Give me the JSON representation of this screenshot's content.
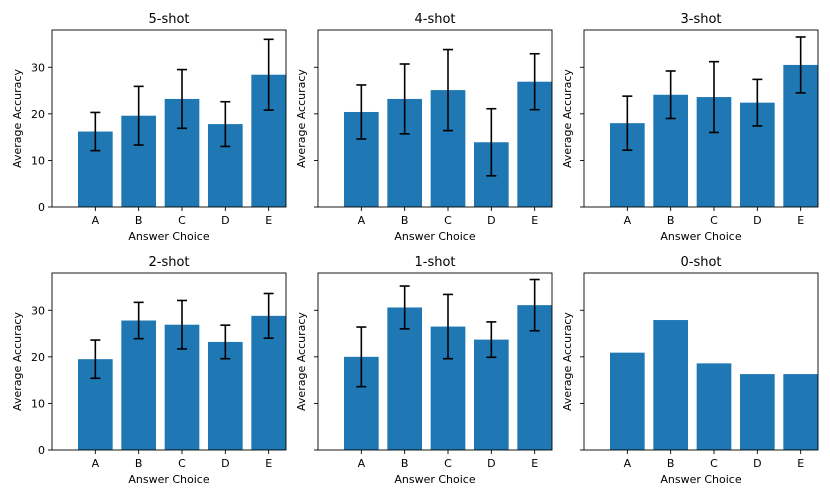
{
  "bar_color": "#1f77b4",
  "error_color": "#000000",
  "chart_data": [
    {
      "type": "bar",
      "title": "5-shot",
      "xlabel": "Answer Choice",
      "ylabel": "Average Accuracy",
      "ylim": [
        0,
        38
      ],
      "yticks": [
        0,
        10,
        20,
        30
      ],
      "ytick_labels_shown": true,
      "categories": [
        "A",
        "B",
        "C",
        "D",
        "E"
      ],
      "values": [
        16.2,
        19.6,
        23.2,
        17.8,
        28.4
      ],
      "errors": [
        4.1,
        6.3,
        6.3,
        4.8,
        7.6
      ]
    },
    {
      "type": "bar",
      "title": "4-shot",
      "xlabel": "Answer Choice",
      "ylabel": "Average Accuracy",
      "ylim": [
        0,
        38
      ],
      "yticks": [
        0,
        10,
        20,
        30
      ],
      "ytick_labels_shown": false,
      "categories": [
        "A",
        "B",
        "C",
        "D",
        "E"
      ],
      "values": [
        20.4,
        23.2,
        25.1,
        13.9,
        26.9
      ],
      "errors": [
        5.8,
        7.5,
        8.7,
        7.2,
        6.0
      ]
    },
    {
      "type": "bar",
      "title": "3-shot",
      "xlabel": "Answer Choice",
      "ylabel": "Average Accuracy",
      "ylim": [
        0,
        38
      ],
      "yticks": [
        0,
        10,
        20,
        30
      ],
      "ytick_labels_shown": false,
      "categories": [
        "A",
        "B",
        "C",
        "D",
        "E"
      ],
      "values": [
        18.0,
        24.1,
        23.6,
        22.4,
        30.5
      ],
      "errors": [
        5.8,
        5.1,
        7.6,
        5.0,
        6.0
      ]
    },
    {
      "type": "bar",
      "title": "2-shot",
      "xlabel": "Answer Choice",
      "ylabel": "Average Accuracy",
      "ylim": [
        0,
        38
      ],
      "yticks": [
        0,
        10,
        20,
        30
      ],
      "ytick_labels_shown": true,
      "categories": [
        "A",
        "B",
        "C",
        "D",
        "E"
      ],
      "values": [
        19.5,
        27.8,
        26.9,
        23.2,
        28.8
      ],
      "errors": [
        4.1,
        3.9,
        5.2,
        3.6,
        4.8
      ]
    },
    {
      "type": "bar",
      "title": "1-shot",
      "xlabel": "Answer Choice",
      "ylabel": "Average Accuracy",
      "ylim": [
        0,
        38
      ],
      "yticks": [
        0,
        10,
        20,
        30
      ],
      "ytick_labels_shown": false,
      "categories": [
        "A",
        "B",
        "C",
        "D",
        "E"
      ],
      "values": [
        20.0,
        30.6,
        26.5,
        23.7,
        31.1
      ],
      "errors": [
        6.4,
        4.6,
        6.9,
        3.8,
        5.5
      ]
    },
    {
      "type": "bar",
      "title": "0-shot",
      "xlabel": "Answer Choice",
      "ylabel": "Average Accuracy",
      "ylim": [
        0,
        38
      ],
      "yticks": [
        0,
        10,
        20,
        30
      ],
      "ytick_labels_shown": false,
      "categories": [
        "A",
        "B",
        "C",
        "D",
        "E"
      ],
      "values": [
        20.9,
        27.9,
        18.6,
        16.3,
        16.3
      ],
      "errors": null
    }
  ]
}
